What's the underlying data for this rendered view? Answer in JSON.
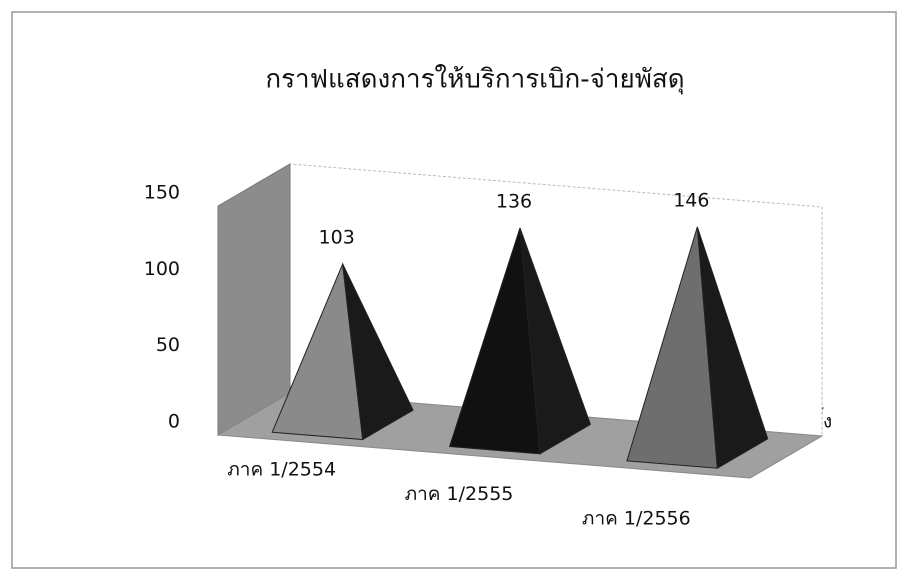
{
  "chart_data": {
    "type": "pyramid",
    "title": "กราฟแสดงการให้บริการเบิก-จ่ายพัสดุ",
    "categories": [
      "ภาค 1/2554",
      "ภาค 1/2555",
      "ภาค 1/2556"
    ],
    "values": [
      103,
      136,
      146
    ],
    "colors": [
      "#8a8a8a",
      "#111111",
      "#6e6e6e"
    ],
    "ylim": [
      0,
      150
    ],
    "yticks": [
      0,
      50,
      100,
      150
    ],
    "axis_label": "ครั้ง"
  }
}
